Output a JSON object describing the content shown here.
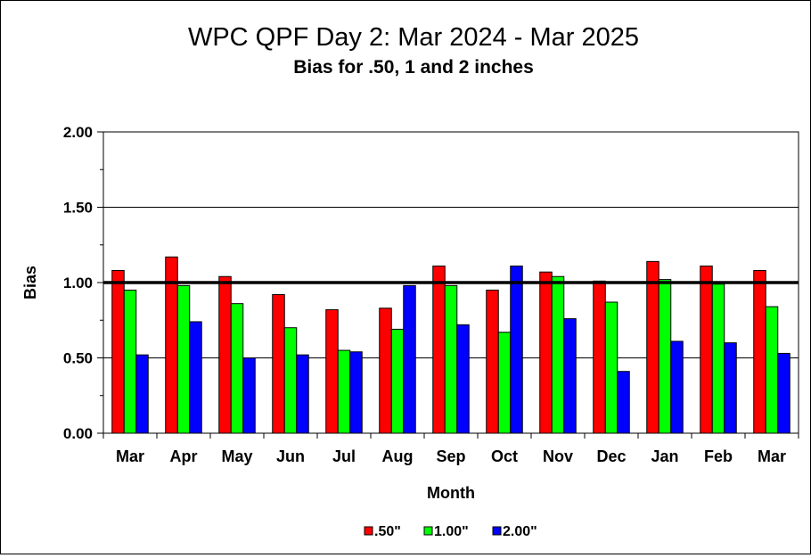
{
  "chart_data": {
    "type": "bar",
    "title": "WPC QPF Day 2:  Mar 2024 - Mar 2025",
    "subtitle": "Bias for .50, 1 and 2 inches",
    "xlabel": "Month",
    "ylabel": "Bias",
    "ylim": [
      0,
      2
    ],
    "yticks": [
      "0.00",
      "0.50",
      "1.00",
      "1.50",
      "2.00"
    ],
    "reference_line": 1.0,
    "grid": true,
    "legend_position": "bottom",
    "categories": [
      "Mar",
      "Apr",
      "May",
      "Jun",
      "Jul",
      "Aug",
      "Sep",
      "Oct",
      "Nov",
      "Dec",
      "Jan",
      "Feb",
      "Mar"
    ],
    "series": [
      {
        "name": ".50\"",
        "color": "#ff0000",
        "values": [
          1.08,
          1.17,
          1.04,
          0.92,
          0.82,
          0.83,
          1.11,
          0.95,
          1.07,
          1.01,
          1.14,
          1.11,
          1.08
        ]
      },
      {
        "name": "1.00\"",
        "color": "#00ff00",
        "values": [
          0.95,
          0.98,
          0.86,
          0.7,
          0.55,
          0.69,
          0.98,
          0.67,
          1.04,
          0.87,
          1.02,
          0.99,
          0.84
        ]
      },
      {
        "name": "2.00\"",
        "color": "#0000ff",
        "values": [
          0.52,
          0.74,
          0.5,
          0.52,
          0.54,
          0.98,
          0.72,
          1.11,
          0.76,
          0.41,
          0.61,
          0.6,
          0.53
        ]
      }
    ]
  }
}
